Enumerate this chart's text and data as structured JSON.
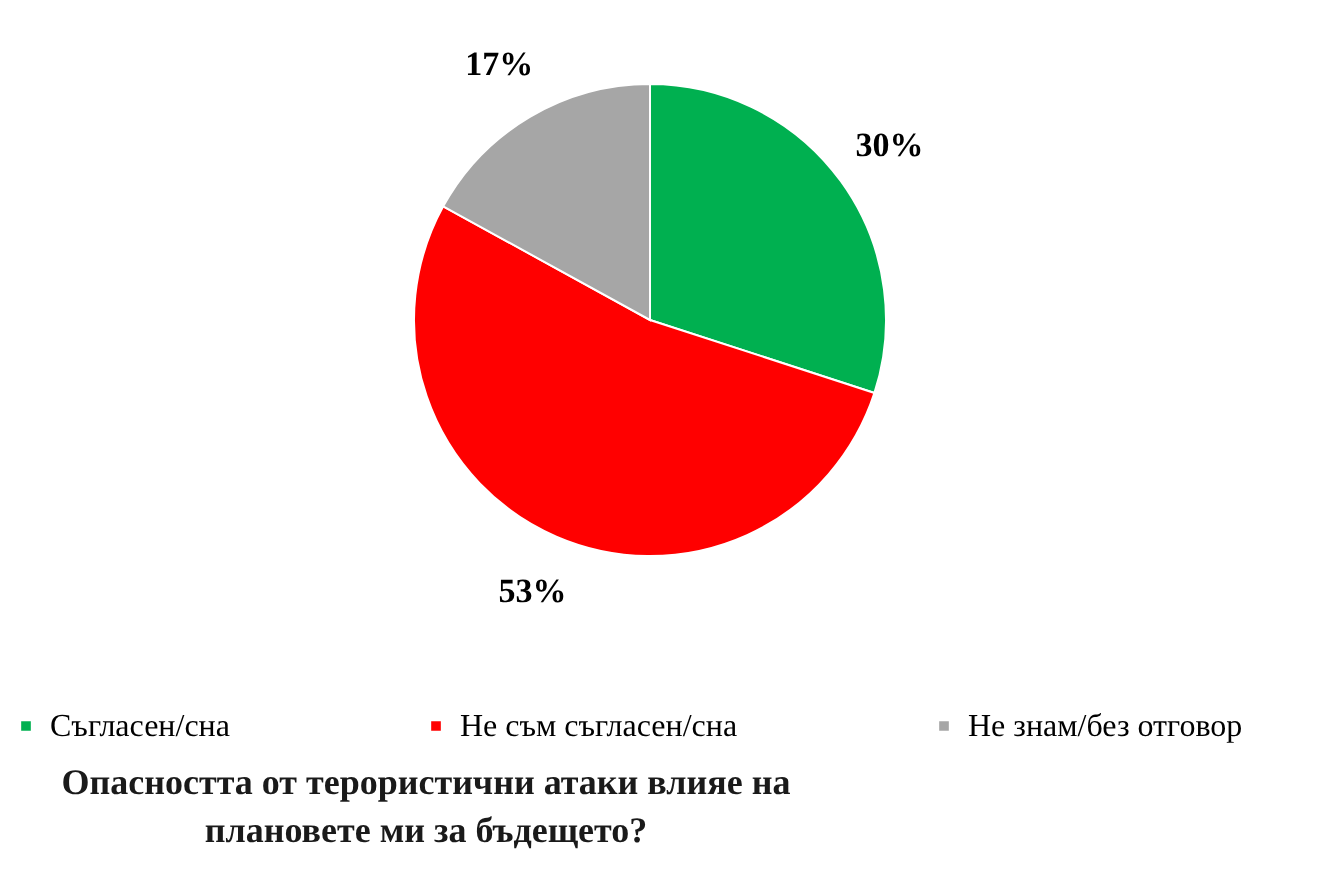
{
  "chart_data": {
    "type": "pie",
    "title": "Опасността от терористични атаки влияе на плановете ми за бъдещето?",
    "categories": [
      "Съгласен/сна",
      "Не съм съгласен/сна",
      "Не знам/без отговор"
    ],
    "values": [
      30,
      53,
      17
    ],
    "colors": [
      "#00b050",
      "#ff0000",
      "#a6a6a6"
    ],
    "value_labels": [
      "30%",
      "53%",
      "17%"
    ],
    "legend": "bottom"
  }
}
